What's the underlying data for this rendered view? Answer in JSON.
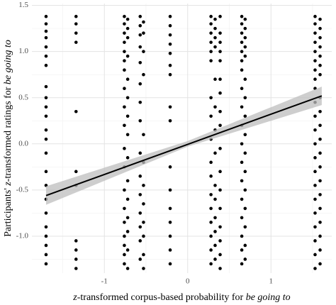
{
  "chart_data": {
    "type": "scatter",
    "xlabel": [
      {
        "text": "z",
        "italic": true
      },
      {
        "text": "-transformed corpus-based probability for ",
        "italic": false
      },
      {
        "text": "be going to",
        "italic": true
      }
    ],
    "ylabel": [
      {
        "text": "Participants' ",
        "italic": false
      },
      {
        "text": "z",
        "italic": true
      },
      {
        "text": "-transformed ratings for ",
        "italic": false
      },
      {
        "text": "be going to",
        "italic": true
      }
    ],
    "xlim": [
      -1.87,
      1.73
    ],
    "ylim": [
      -1.4,
      1.52
    ],
    "xticks": [
      -1,
      0,
      1
    ],
    "minor_xticks": [
      -1.5,
      -0.5,
      0.5,
      1.5
    ],
    "yticks": [
      {
        "value": -1,
        "label": "-1.0"
      },
      -0.5,
      {
        "value": 0,
        "label": "0.0"
      },
      0.5,
      {
        "value": 1,
        "label": "1.0"
      },
      1.5
    ],
    "minor_yticks": [
      -1.25,
      -0.75,
      -0.25,
      0.25,
      0.75,
      1.25
    ],
    "grid": true,
    "color": "#000000",
    "series": [
      {
        "x": -1.7,
        "y": [
          1.38,
          1.3,
          1.22,
          1.15,
          1.05,
          0.95,
          0.85,
          0.62,
          0.5,
          0.4,
          0.3,
          0.15,
          0.05,
          -0.1,
          -0.3,
          -0.45,
          -0.6,
          -0.75,
          -0.9,
          -1.0,
          -1.1,
          -1.2,
          -1.3
        ]
      },
      {
        "x": -1.34,
        "y": [
          1.38,
          1.3,
          1.2,
          1.1,
          0.35,
          -0.3,
          -0.45,
          -1.05,
          -1.15,
          -1.25,
          -1.35
        ]
      },
      {
        "x": -0.76,
        "y": [
          1.38,
          1.3,
          1.2,
          1.1,
          1.0,
          0.9,
          0.8,
          0.6,
          0.4,
          0.2,
          -0.05,
          -0.25,
          -0.5,
          -0.7,
          -0.85,
          -1.0,
          -1.1,
          -1.2,
          -1.3
        ]
      },
      {
        "x": -0.72,
        "y": [
          1.35,
          1.25,
          1.15,
          0.95,
          0.7,
          0.5,
          0.3,
          0.1,
          -0.15,
          -0.4,
          -0.6,
          -0.8,
          -0.95,
          -1.15,
          -1.35
        ]
      },
      {
        "x": -0.57,
        "y": [
          1.38,
          1.28,
          1.18,
          1.05,
          0.88,
          0.65,
          0.45,
          0.25,
          -0.1,
          -0.35,
          -0.55,
          -0.75,
          -0.9,
          -1.05,
          -1.25
        ]
      },
      {
        "x": -0.53,
        "y": [
          1.32,
          1.2,
          1.0,
          0.75,
          0.1,
          -0.2,
          -0.45,
          -0.65,
          -0.85,
          -1.0,
          -1.2,
          -1.35
        ]
      },
      {
        "x": -0.21,
        "y": [
          1.38,
          1.28,
          1.18,
          1.08,
          0.98,
          0.85,
          0.75,
          0.4,
          0.25,
          -0.25,
          -0.5,
          -0.7,
          -0.85,
          -1.0,
          -1.15,
          -1.3
        ]
      },
      {
        "x": 0.28,
        "y": [
          1.38,
          1.3,
          1.2,
          1.1,
          1.0,
          0.9,
          0.5,
          0.3,
          0.05,
          -0.2,
          -0.35,
          -0.55,
          -0.7,
          -0.85,
          -1.0,
          -1.15,
          -1.3
        ]
      },
      {
        "x": 0.33,
        "y": [
          1.35,
          1.25,
          1.15,
          1.05,
          0.7,
          0.4,
          0.15,
          -0.1,
          -0.45,
          -0.6,
          -0.8,
          -0.95,
          -1.1,
          -1.25
        ]
      },
      {
        "x": 0.39,
        "y": [
          1.38,
          1.2,
          1.1,
          1.0,
          0.9,
          0.7,
          0.55,
          0.35,
          0.2,
          -0.05,
          -0.3,
          -0.5,
          -0.7,
          -0.9,
          -1.05,
          -1.2,
          -1.35
        ]
      },
      {
        "x": 0.65,
        "y": [
          1.38,
          1.3,
          1.2,
          1.1,
          1.0,
          0.9,
          0.8,
          0.6,
          0.4,
          0.2,
          0.0,
          -0.2,
          -0.4,
          -0.6,
          -0.8,
          -1.0,
          -1.15,
          -1.3
        ]
      },
      {
        "x": 0.69,
        "y": [
          1.35,
          1.25,
          1.15,
          1.05,
          0.95,
          0.7,
          0.5,
          0.3,
          0.1,
          -0.1,
          -0.3,
          -0.5,
          -0.7,
          -0.9,
          -1.1,
          -1.25
        ]
      },
      {
        "x": 1.53,
        "y": [
          1.38,
          1.3,
          1.2,
          1.1,
          1.0,
          0.9,
          0.8,
          0.7,
          0.6,
          0.45,
          0.3,
          0.15,
          0.0,
          -0.15,
          -0.3,
          -0.45,
          -0.6,
          -0.75,
          -0.9,
          -1.05,
          -1.2,
          -1.35
        ]
      },
      {
        "x": 1.59,
        "y": [
          1.35,
          1.25,
          1.15,
          1.05,
          0.95,
          0.85,
          0.75,
          0.5,
          0.35,
          0.2,
          0.05,
          -0.1,
          -0.25,
          -0.4,
          -0.55,
          -0.7,
          -0.85,
          -1.0,
          -1.15,
          -1.3
        ]
      }
    ],
    "trend": {
      "x": [
        -1.7,
        1.61
      ],
      "y": [
        -0.56,
        0.52
      ],
      "color": "#000000"
    },
    "band": {
      "x": [
        -1.7,
        0,
        1.61
      ],
      "lower": [
        -0.66,
        -0.03,
        0.42
      ],
      "upper": [
        -0.46,
        0.03,
        0.62
      ],
      "color": "#bdbdbd"
    }
  }
}
